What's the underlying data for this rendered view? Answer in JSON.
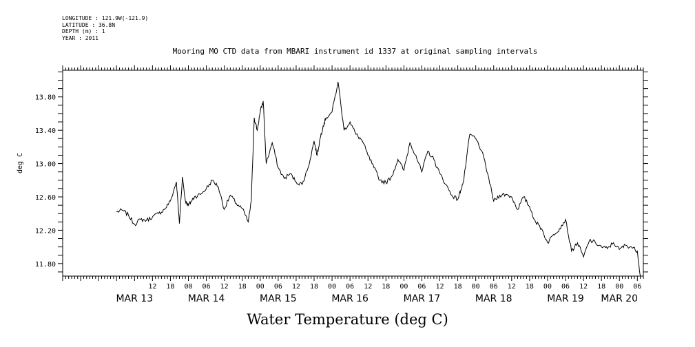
{
  "header": {
    "longitude": "LONGITUDE : 121.9W(-121.9)",
    "latitude": "LATITUDE : 36.8N",
    "depth": "DEPTH (m) : 1",
    "year": "YEAR : 2011"
  },
  "chart_data": {
    "type": "line",
    "title": "Mooring MO CTD data from MBARI instrument id 1337 at original sampling intervals",
    "xlabel": "Water Temperature (deg C)",
    "ylabel": "deg C",
    "ylim": [
      11.65,
      14.12
    ],
    "yticks": [
      11.8,
      12.2,
      12.6,
      13.0,
      13.4,
      13.8
    ],
    "ytick_labels": [
      "11.80",
      "12.20",
      "12.60",
      "13.00",
      "13.40",
      "13.80"
    ],
    "xlim_hours": [
      "MAR 12 06:00",
      "MAR 20 08:00"
    ],
    "x_hour_labels": [
      {
        "t": "MAR 13 12:00",
        "label": "12"
      },
      {
        "t": "MAR 13 18:00",
        "label": "18"
      },
      {
        "t": "MAR 14 00:00",
        "label": "00"
      },
      {
        "t": "MAR 14 06:00",
        "label": "06"
      },
      {
        "t": "MAR 14 12:00",
        "label": "12"
      },
      {
        "t": "MAR 14 18:00",
        "label": "18"
      },
      {
        "t": "MAR 15 00:00",
        "label": "00"
      },
      {
        "t": "MAR 15 06:00",
        "label": "06"
      },
      {
        "t": "MAR 15 12:00",
        "label": "12"
      },
      {
        "t": "MAR 15 18:00",
        "label": "18"
      },
      {
        "t": "MAR 16 00:00",
        "label": "00"
      },
      {
        "t": "MAR 16 06:00",
        "label": "06"
      },
      {
        "t": "MAR 16 12:00",
        "label": "12"
      },
      {
        "t": "MAR 16 18:00",
        "label": "18"
      },
      {
        "t": "MAR 17 00:00",
        "label": "00"
      },
      {
        "t": "MAR 17 06:00",
        "label": "06"
      },
      {
        "t": "MAR 17 12:00",
        "label": "12"
      },
      {
        "t": "MAR 17 18:00",
        "label": "18"
      },
      {
        "t": "MAR 18 00:00",
        "label": "00"
      },
      {
        "t": "MAR 18 06:00",
        "label": "06"
      },
      {
        "t": "MAR 18 12:00",
        "label": "12"
      },
      {
        "t": "MAR 18 18:00",
        "label": "18"
      },
      {
        "t": "MAR 19 00:00",
        "label": "00"
      },
      {
        "t": "MAR 19 06:00",
        "label": "06"
      },
      {
        "t": "MAR 19 12:00",
        "label": "12"
      },
      {
        "t": "MAR 19 18:00",
        "label": "18"
      },
      {
        "t": "MAR 20 00:00",
        "label": "00"
      },
      {
        "t": "MAR 20 06:00",
        "label": "06"
      }
    ],
    "x_day_labels": [
      {
        "t": "MAR 13 06:00",
        "label": "MAR 13"
      },
      {
        "t": "MAR 14 06:00",
        "label": "MAR 14"
      },
      {
        "t": "MAR 15 06:00",
        "label": "MAR 15"
      },
      {
        "t": "MAR 16 06:00",
        "label": "MAR 16"
      },
      {
        "t": "MAR 17 06:00",
        "label": "MAR 17"
      },
      {
        "t": "MAR 18 06:00",
        "label": "MAR 18"
      },
      {
        "t": "MAR 19 06:00",
        "label": "MAR 19"
      },
      {
        "t": "MAR 20 00:00",
        "label": "MAR 20"
      }
    ],
    "series": [
      {
        "x": [
          "MAR 13 00:00",
          "MAR 13 02:00",
          "MAR 13 04:00",
          "MAR 13 06:00",
          "MAR 13 08:00",
          "MAR 13 10:00",
          "MAR 13 12:00",
          "MAR 13 14:00",
          "MAR 13 16:00",
          "MAR 13 18:00",
          "MAR 13 20:00",
          "MAR 13 21:00",
          "MAR 13 22:00",
          "MAR 13 23:00",
          "MAR 14 00:00",
          "MAR 14 01:00",
          "MAR 14 02:00",
          "MAR 14 04:00",
          "MAR 14 06:00",
          "MAR 14 08:00",
          "MAR 14 10:00",
          "MAR 14 12:00",
          "MAR 14 14:00",
          "MAR 14 16:00",
          "MAR 14 18:00",
          "MAR 14 20:00",
          "MAR 14 21:00",
          "MAR 14 22:00",
          "MAR 14 23:00",
          "MAR 15 00:00",
          "MAR 15 01:00",
          "MAR 15 02:00",
          "MAR 15 04:00",
          "MAR 15 06:00",
          "MAR 15 08:00",
          "MAR 15 10:00",
          "MAR 15 12:00",
          "MAR 15 14:00",
          "MAR 15 16:00",
          "MAR 15 18:00",
          "MAR 15 19:00",
          "MAR 15 20:00",
          "MAR 15 21:00",
          "MAR 15 22:00",
          "MAR 16 00:00",
          "MAR 16 02:00",
          "MAR 16 04:00",
          "MAR 16 06:00",
          "MAR 16 08:00",
          "MAR 16 10:00",
          "MAR 16 12:00",
          "MAR 16 14:00",
          "MAR 16 16:00",
          "MAR 16 18:00",
          "MAR 16 20:00",
          "MAR 16 22:00",
          "MAR 17 00:00",
          "MAR 17 02:00",
          "MAR 17 04:00",
          "MAR 17 06:00",
          "MAR 17 08:00",
          "MAR 17 10:00",
          "MAR 17 12:00",
          "MAR 17 14:00",
          "MAR 17 16:00",
          "MAR 17 18:00",
          "MAR 17 19:00",
          "MAR 17 20:00",
          "MAR 17 22:00",
          "MAR 18 00:00",
          "MAR 18 02:00",
          "MAR 18 04:00",
          "MAR 18 06:00",
          "MAR 18 08:00",
          "MAR 18 10:00",
          "MAR 18 12:00",
          "MAR 18 14:00",
          "MAR 18 16:00",
          "MAR 18 18:00",
          "MAR 18 20:00",
          "MAR 18 22:00",
          "MAR 19 00:00",
          "MAR 19 02:00",
          "MAR 19 04:00",
          "MAR 19 06:00",
          "MAR 19 08:00",
          "MAR 19 10:00",
          "MAR 19 12:00",
          "MAR 19 14:00",
          "MAR 19 16:00",
          "MAR 19 18:00",
          "MAR 19 20:00",
          "MAR 19 22:00",
          "MAR 20 00:00",
          "MAR 20 02:00",
          "MAR 20 04:00",
          "MAR 20 06:00",
          "MAR 20 07:00"
        ],
        "y": [
          12.42,
          12.44,
          12.38,
          12.27,
          12.33,
          12.32,
          12.36,
          12.4,
          12.45,
          12.55,
          12.78,
          12.28,
          12.84,
          12.55,
          12.5,
          12.55,
          12.6,
          12.63,
          12.7,
          12.8,
          12.72,
          12.45,
          12.62,
          12.52,
          12.46,
          12.3,
          12.55,
          13.55,
          13.4,
          13.62,
          13.75,
          13.0,
          13.25,
          12.95,
          12.82,
          12.88,
          12.78,
          12.75,
          12.95,
          13.27,
          13.1,
          13.3,
          13.45,
          13.55,
          13.62,
          13.98,
          13.4,
          13.5,
          13.35,
          13.28,
          13.1,
          12.95,
          12.8,
          12.77,
          12.85,
          13.05,
          12.92,
          13.25,
          13.1,
          12.9,
          13.15,
          13.05,
          12.88,
          12.75,
          12.62,
          12.57,
          12.68,
          12.8,
          13.35,
          13.3,
          13.15,
          12.88,
          12.55,
          12.62,
          12.63,
          12.6,
          12.45,
          12.6,
          12.48,
          12.3,
          12.22,
          12.05,
          12.15,
          12.22,
          12.33,
          11.95,
          12.05,
          11.88,
          12.08,
          12.05,
          12.0,
          11.98,
          12.05,
          11.97,
          12.02,
          12.0,
          11.95,
          11.65
        ]
      }
    ],
    "grid": false
  }
}
